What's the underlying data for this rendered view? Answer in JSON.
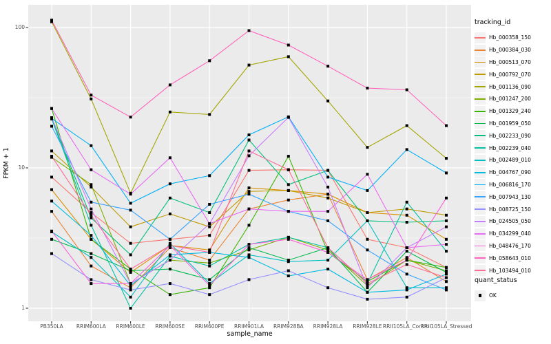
{
  "chart_data": {
    "type": "line",
    "title": "",
    "xlabel": "sample_name",
    "ylabel": "FPKM + 1",
    "y_scale": "log10",
    "ylim": [
      1,
      130
    ],
    "y_ticks": [
      1,
      10,
      100
    ],
    "y_minor_gridlines": [
      3.162,
      31.62
    ],
    "grid": "on",
    "panel_bg": "#EBEBEB",
    "grid_color": "#FFFFFF",
    "point_color": "#000000",
    "point_shape": "square",
    "categories": [
      "PB350LA",
      "RRIM600LA",
      "RRIM600LE",
      "RRIM600SE",
      "RRIM600PE",
      "RRIM901LA",
      "RRIM928BA",
      "RRIM928LA",
      "RRIM928LE",
      "RRII105LA_Control",
      "RRII105LA_Stressed"
    ],
    "legend": {
      "title": "tracking_id",
      "position": "right"
    },
    "quant_status": {
      "title": "quant_status",
      "items": [
        {
          "label": "OK",
          "marker": "black-square"
        }
      ]
    },
    "series": [
      {
        "name": "Hb_000358_150",
        "color": "#F8766D",
        "values": [
          8.6,
          4.8,
          2.9,
          3.1,
          3.3,
          9.6,
          9.7,
          9.6,
          3.1,
          2.7,
          1.95
        ]
      },
      {
        "name": "Hb_000384_030",
        "color": "#EA8331",
        "values": [
          4.9,
          2.0,
          1.4,
          2.7,
          2.2,
          5.1,
          5.9,
          6.5,
          1.6,
          2.3,
          1.55
        ]
      },
      {
        "name": "Hb_000513_070",
        "color": "#D89000",
        "values": [
          7.0,
          3.1,
          1.8,
          2.8,
          2.6,
          7.2,
          6.9,
          6.5,
          4.8,
          4.6,
          3.1
        ]
      },
      {
        "name": "Hb_000792_070",
        "color": "#C09B00",
        "values": [
          13.2,
          7.3,
          3.8,
          4.7,
          3.8,
          6.8,
          6.9,
          6.1,
          4.8,
          5.1,
          4.6
        ]
      },
      {
        "name": "Hb_001136_090",
        "color": "#A3A500",
        "values": [
          110,
          31,
          6.6,
          25,
          24,
          54,
          62,
          30,
          14,
          20,
          11.7
        ]
      },
      {
        "name": "Hb_001247_200",
        "color": "#7CAE00",
        "values": [
          11.9,
          7.6,
          1.5,
          2.2,
          2.1,
          2.6,
          3.2,
          2.6,
          1.45,
          2.2,
          1.85
        ]
      },
      {
        "name": "Hb_001329_240",
        "color": "#39B600",
        "values": [
          26.5,
          3.1,
          1.9,
          1.25,
          1.4,
          3.9,
          12.1,
          2.5,
          1.55,
          2.2,
          1.95
        ]
      },
      {
        "name": "Hb_001959_050",
        "color": "#00BB4E",
        "values": [
          3.1,
          2.45,
          1.85,
          1.9,
          1.6,
          2.7,
          2.2,
          2.7,
          1.3,
          2.55,
          1.8
        ]
      },
      {
        "name": "Hb_002233_090",
        "color": "#00BF7D",
        "values": [
          22.5,
          4.4,
          2.4,
          6.1,
          4.8,
          15.8,
          7.6,
          9.6,
          4.2,
          4.1,
          4.2
        ]
      },
      {
        "name": "Hb_002239_040",
        "color": "#00C1A3",
        "values": [
          22.3,
          3.9,
          1.0,
          2.35,
          2.0,
          2.85,
          3.2,
          2.7,
          1.5,
          5.7,
          2.55
        ]
      },
      {
        "name": "Hb_002489_010",
        "color": "#00BFC4",
        "values": [
          3.5,
          2.3,
          1.2,
          2.9,
          1.5,
          2.4,
          2.15,
          2.2,
          4.2,
          1.4,
          1.4
        ]
      },
      {
        "name": "Hb_004767_090",
        "color": "#00BAE0",
        "values": [
          5.8,
          3.3,
          1.45,
          2.4,
          2.5,
          2.3,
          1.7,
          1.9,
          1.3,
          1.35,
          1.75
        ]
      },
      {
        "name": "Hb_006816_170",
        "color": "#00B0F6",
        "values": [
          22.5,
          14.4,
          5.6,
          7.7,
          8.8,
          17.2,
          23.1,
          8.6,
          6.9,
          13.5,
          9.2
        ]
      },
      {
        "name": "Hb_007943_130",
        "color": "#35A2FF",
        "values": [
          19.8,
          5.7,
          5.0,
          3.1,
          5.5,
          6.5,
          4.9,
          4.2,
          2.6,
          1.75,
          1.35
        ]
      },
      {
        "name": "Hb_008725_150",
        "color": "#9590FF",
        "values": [
          2.45,
          1.6,
          1.35,
          1.5,
          1.25,
          1.6,
          1.85,
          1.4,
          1.16,
          1.2,
          1.65
        ]
      },
      {
        "name": "Hb_024505_050",
        "color": "#C77CFF",
        "values": [
          22.8,
          5.1,
          1.5,
          2.2,
          4.0,
          12.2,
          22.9,
          7.3,
          1.4,
          2.7,
          3.8
        ]
      },
      {
        "name": "Hb_034299_040",
        "color": "#E76BF3",
        "values": [
          26.5,
          9.7,
          6.5,
          11.8,
          4.0,
          5.1,
          4.9,
          4.9,
          9.0,
          2.7,
          2.85
        ]
      },
      {
        "name": "Hb_048476_170",
        "color": "#FA62DB",
        "values": [
          3.55,
          1.5,
          1.5,
          2.8,
          1.45,
          2.85,
          3.1,
          2.5,
          1.6,
          2.2,
          6.1
        ]
      },
      {
        "name": "Hb_058643_010",
        "color": "#FF62BC",
        "values": [
          113,
          33,
          23,
          39,
          58,
          95,
          75,
          53,
          37,
          36,
          20
        ]
      },
      {
        "name": "Hb_103494_010",
        "color": "#FF6A98",
        "values": [
          12.1,
          4.6,
          1.9,
          2.8,
          2.5,
          13.2,
          9.7,
          2.7,
          1.5,
          2.05,
          1.65
        ]
      }
    ]
  }
}
